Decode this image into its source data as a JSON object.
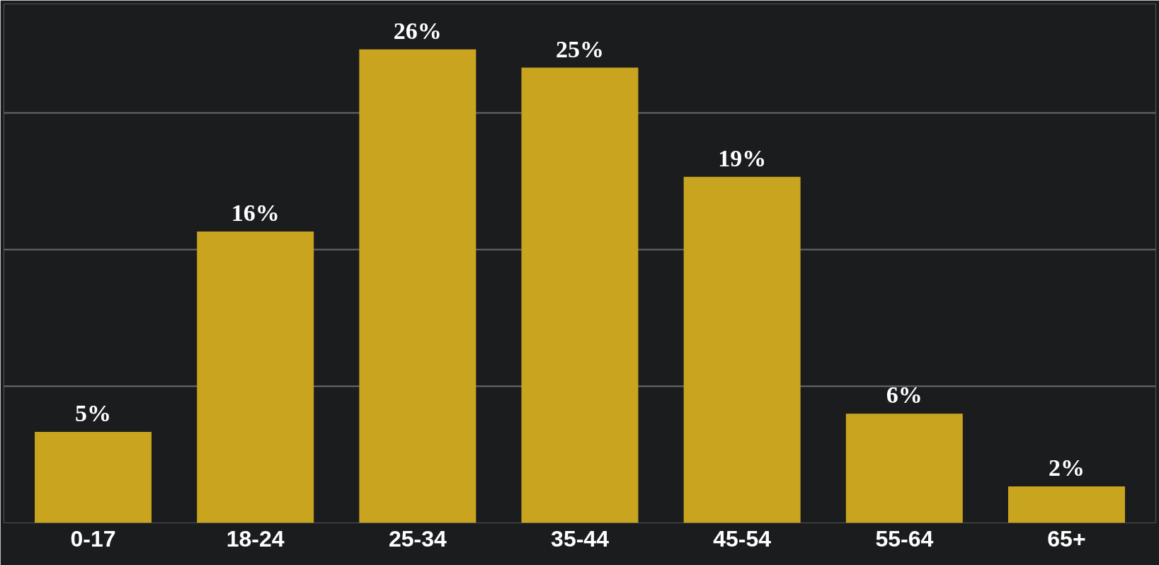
{
  "chart_data": {
    "type": "bar",
    "categories": [
      "0-17",
      "18-24",
      "25-34",
      "35-44",
      "45-54",
      "55-64",
      "65+"
    ],
    "values": [
      5,
      16,
      26,
      25,
      19,
      6,
      2
    ],
    "value_labels": [
      "5%",
      "16%",
      "26%",
      "25%",
      "19%",
      "6%",
      "2%"
    ],
    "color": "#c9a41e",
    "ylim": [
      0,
      28.5
    ],
    "yticks": [
      {
        "value": 0,
        "label": null
      },
      {
        "value": 7.5,
        "label": null
      },
      {
        "value": 15,
        "label": null
      },
      {
        "value": 22.5,
        "label": null
      }
    ],
    "grid": "y",
    "tick_labels": "x"
  }
}
